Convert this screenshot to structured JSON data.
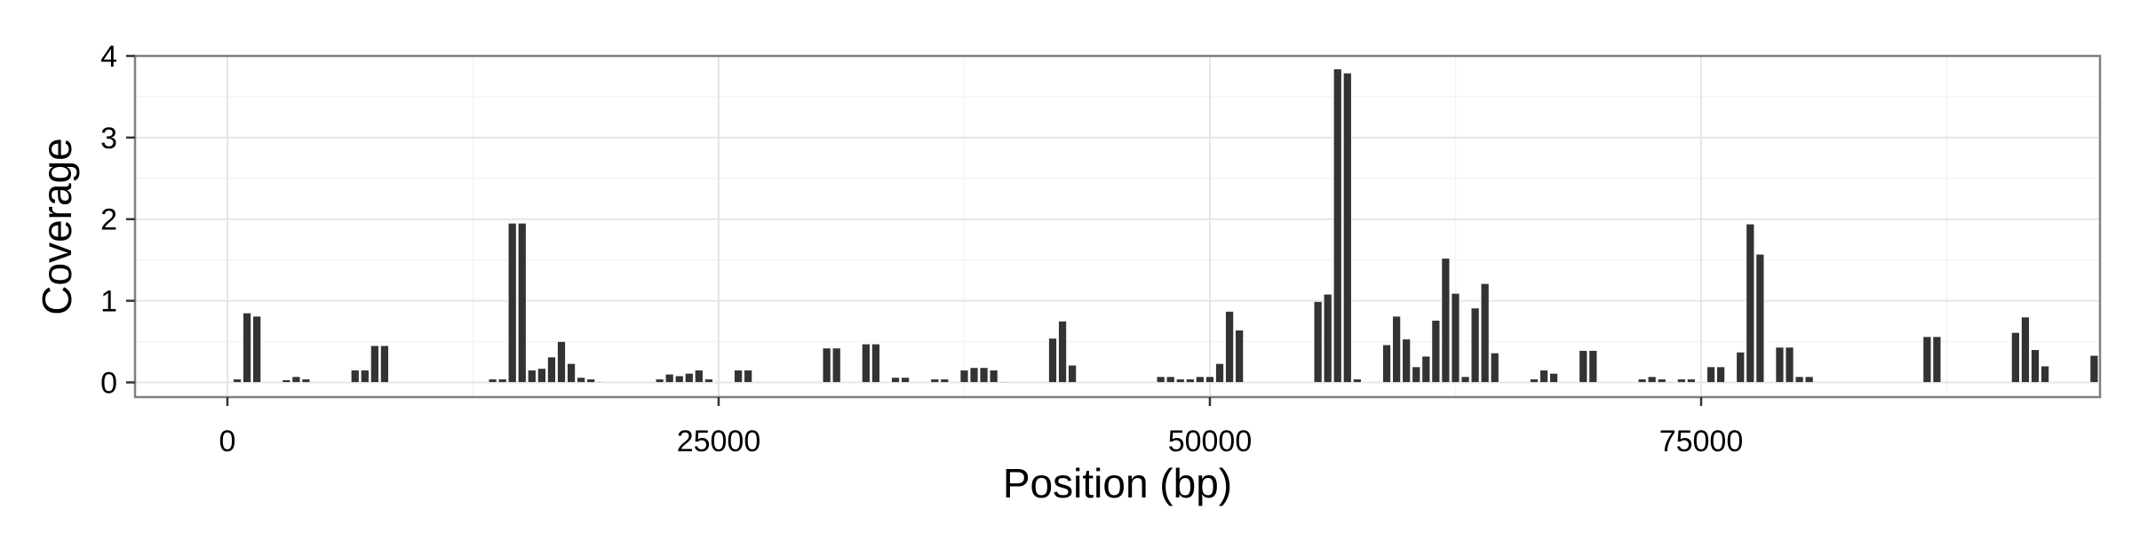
{
  "chart_data": {
    "type": "bar",
    "title": "",
    "xlabel": "Position (bp)",
    "ylabel": "Coverage",
    "xlim": [
      -4700,
      95300
    ],
    "ylim": [
      -0.18,
      4.0
    ],
    "x_ticks": [
      0,
      25000,
      50000,
      75000
    ],
    "x_tick_labels": [
      "0",
      "25000",
      "50000",
      "75000"
    ],
    "y_ticks": [
      0,
      1,
      2,
      3,
      4
    ],
    "y_tick_labels": [
      "0",
      "1",
      "2",
      "3",
      "4"
    ],
    "grid": true,
    "bar_width": 400,
    "bar_color": "#333333",
    "series": [
      {
        "x": [
          500,
          1000,
          1500,
          3000,
          3500,
          4000,
          6500,
          7000,
          7500,
          8000,
          13500,
          14000,
          14500,
          15000,
          15500,
          16000,
          16500,
          17000,
          17500,
          18000,
          18500,
          19000,
          22000,
          22500,
          23000,
          23500,
          24000,
          24500,
          26000,
          26500,
          30500,
          31000,
          32500,
          33000,
          34000,
          34500,
          36000,
          36500,
          37500,
          38000,
          38500,
          39000,
          39500,
          42000,
          42500,
          43000,
          47500,
          48000,
          48500,
          49000,
          49500,
          50000,
          50500,
          51000,
          51500,
          55500,
          56000,
          56500,
          57000,
          57500,
          59000,
          59500,
          60000,
          60500,
          61000,
          61500,
          62000,
          62500,
          63000,
          63500,
          64000,
          64500,
          66500,
          67000,
          67500,
          69000,
          69500,
          72000,
          72500,
          73000,
          74000,
          74500,
          75500,
          76000,
          77000,
          77500,
          78000,
          79000,
          79500,
          80000,
          80500,
          86500,
          87000,
          91000,
          91500,
          92000,
          92500,
          95000
        ],
        "values": [
          0.04,
          0.85,
          0.81,
          0.03,
          0.07,
          0.04,
          0.15,
          0.15,
          0.45,
          0.45,
          0.04,
          0.04,
          1.95,
          1.95,
          0.15,
          0.17,
          0.31,
          0.5,
          0.23,
          0.06,
          0.04,
          0,
          0.04,
          0.1,
          0.08,
          0.11,
          0.15,
          0.04,
          0.15,
          0.15,
          0.42,
          0.42,
          0.47,
          0.47,
          0.06,
          0.06,
          0.04,
          0.04,
          0.15,
          0.18,
          0.18,
          0.15,
          0,
          0.54,
          0.75,
          0.21,
          0.07,
          0.07,
          0.04,
          0.04,
          0.07,
          0.07,
          0.23,
          0.87,
          0.64,
          0.99,
          1.08,
          3.84,
          3.79,
          0.04,
          0.46,
          0.81,
          0.53,
          0.19,
          0.32,
          0.76,
          1.52,
          1.09,
          0.07,
          0.91,
          1.21,
          0.36,
          0.04,
          0.15,
          0.11,
          0.39,
          0.39,
          0.04,
          0.07,
          0.04,
          0.04,
          0.04,
          0.19,
          0.19,
          0.37,
          1.94,
          1.57,
          0.43,
          0.43,
          0.07,
          0.07,
          0.56,
          0.56,
          0.61,
          0.8,
          0.4,
          0.2,
          0.33
        ]
      }
    ]
  }
}
